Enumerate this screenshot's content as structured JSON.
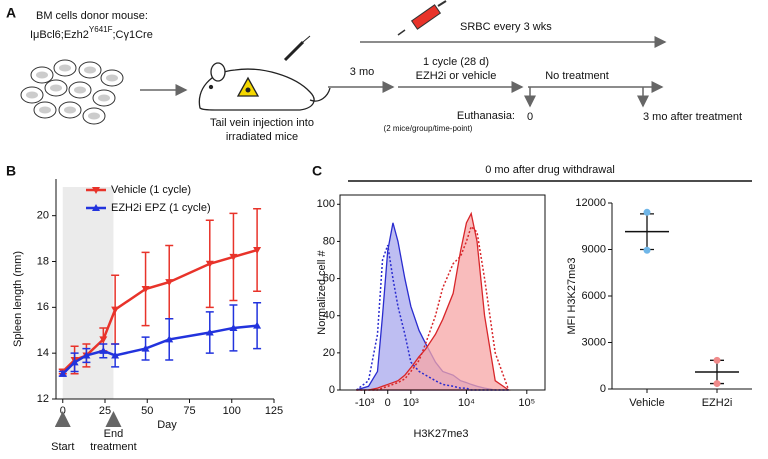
{
  "diagram": {
    "label": "A",
    "donor": "BM cells donor mouse:",
    "genotype": [
      "IμBcl6;Ezh2",
      "Y641F",
      ";Cγ1Cre"
    ],
    "srbc": "SRBC every 3 wks",
    "injection": [
      "Tail vein injection into",
      "irradiated mice"
    ],
    "wait": "3 mo",
    "cycle": [
      "1 cycle (28 d)",
      "EZH2i or vehicle"
    ],
    "no_treatment": "No treatment",
    "euthanasia": "Euthanasia:",
    "euthanasia_note": "(2 mice/group/time-point)",
    "timepoints": [
      "0",
      "3 mo after treatment"
    ]
  },
  "chart_data": [
    {
      "type": "line",
      "panel": "B",
      "xlabel": "Day",
      "ylabel": "Spleen length (mm)",
      "x": [
        0,
        7,
        14,
        24,
        31,
        49,
        63,
        87,
        101,
        115
      ],
      "series": [
        {
          "name": "Vehicle (1 cycle)",
          "color": "#e8332a",
          "marker": "down",
          "values": [
            13.2,
            13.7,
            13.9,
            14.6,
            15.9,
            16.8,
            17.1,
            17.9,
            18.2,
            18.5
          ],
          "errors": [
            0.1,
            0.6,
            0.5,
            0.5,
            1.5,
            1.6,
            1.6,
            1.9,
            1.9,
            1.8
          ]
        },
        {
          "name": "EZH2i EPZ (1 cycle)",
          "color": "#2233dd",
          "marker": "up",
          "values": [
            13.1,
            13.6,
            13.9,
            14.1,
            13.9,
            14.2,
            14.6,
            14.9,
            15.1,
            15.2
          ],
          "errors": [
            0.1,
            0.4,
            0.3,
            0.3,
            0.5,
            0.5,
            0.9,
            0.9,
            1.0,
            1.0
          ]
        }
      ],
      "xlim": [
        -4,
        125
      ],
      "xticks": [
        0,
        25,
        50,
        75,
        100,
        125
      ],
      "ylim": [
        12,
        21.6
      ],
      "yticks": [
        12,
        14,
        16,
        18,
        20
      ],
      "shaded_range": [
        0,
        30
      ],
      "annotations": [
        {
          "x": 0,
          "text": [
            "Start"
          ]
        },
        {
          "x": 30,
          "text": [
            "End",
            "treatment"
          ]
        }
      ]
    },
    {
      "type": "area",
      "panel": "C",
      "title": "0 mo after drug withdrawal",
      "xlabel": "H3K27me3",
      "ylabel": "Normalized cell #",
      "xscale": "biexponential",
      "x": [
        -1500,
        -800,
        -400,
        -200,
        0,
        200,
        400,
        700,
        1000,
        1500,
        2000,
        3000,
        4000,
        6000,
        8000,
        10000,
        12000,
        15000,
        20000,
        30000,
        50000
      ],
      "series": [
        {
          "color": "#2a2ccf",
          "style": "filled",
          "fill": "#a8a8ee",
          "values": [
            0,
            2,
            10,
            40,
            75,
            90,
            80,
            60,
            45,
            32,
            25,
            15,
            10,
            8,
            5,
            4,
            3,
            2,
            1,
            0,
            0
          ]
        },
        {
          "color": "#d8262a",
          "style": "filled",
          "fill": "#f7a6a6",
          "values": [
            0,
            0,
            1,
            2,
            3,
            4,
            5,
            8,
            12,
            18,
            22,
            30,
            38,
            52,
            75,
            90,
            95,
            80,
            40,
            5,
            0
          ]
        },
        {
          "color": "#2a2ccf",
          "style": "dotted",
          "values": [
            0,
            5,
            30,
            70,
            78,
            60,
            45,
            30,
            15,
            10,
            8,
            5,
            3,
            2,
            1,
            1,
            0,
            0,
            0,
            0,
            0
          ]
        },
        {
          "color": "#d8262a",
          "style": "dotted",
          "values": [
            0,
            0,
            0,
            1,
            2,
            3,
            4,
            6,
            10,
            16,
            25,
            40,
            55,
            68,
            72,
            80,
            88,
            85,
            60,
            20,
            0
          ]
        }
      ],
      "xlim": [
        -3000,
        200000
      ],
      "xticks": [
        {
          "value": -1000,
          "label": "-10³"
        },
        0,
        {
          "value": 1000,
          "label": "10³"
        },
        {
          "value": 10000,
          "label": "10⁴"
        },
        {
          "value": 100000,
          "label": "10⁵"
        }
      ],
      "ylim": [
        0,
        105
      ],
      "yticks": [
        0,
        20,
        40,
        60,
        80,
        100
      ]
    },
    {
      "type": "dot",
      "ylabel": "MFI H3K27me3",
      "categories": [
        "Vehicle",
        "EZH2i"
      ],
      "values": [
        [
          11400,
          8950
        ],
        [
          1850,
          350
        ]
      ],
      "means": [
        10150,
        1100
      ],
      "errors": [
        1150,
        750
      ],
      "colors": [
        "#6fb6e8",
        "#f08a8a"
      ],
      "ylim": [
        0,
        12000
      ],
      "yticks": [
        0,
        3000,
        6000,
        9000,
        12000
      ]
    }
  ]
}
